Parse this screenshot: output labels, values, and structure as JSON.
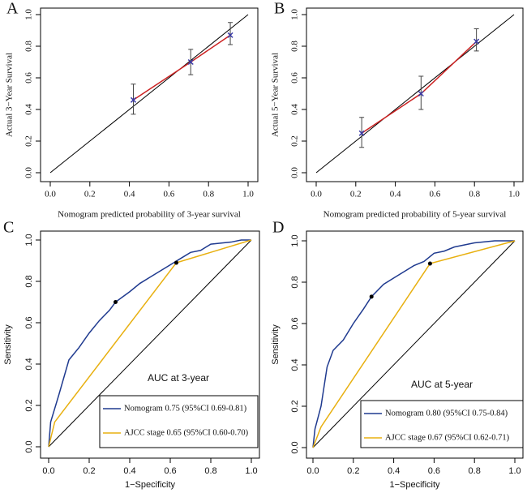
{
  "chart_data": [
    {
      "type": "calibration",
      "panel": "A",
      "xlabel": "Nomogram predicted probability of 3-year survival",
      "ylabel": "Actual 3−Year Survival",
      "xlim": [
        0,
        1
      ],
      "ylim": [
        0,
        1
      ],
      "xticks": [
        {
          "value": 0,
          "label": "0.0"
        },
        0.2,
        0.4,
        0.6,
        0.8,
        {
          "value": 1,
          "label": "1.0"
        }
      ],
      "yticks": [
        {
          "value": 0,
          "label": "0.0"
        },
        0.2,
        0.4,
        0.6,
        0.8,
        {
          "value": 1,
          "label": "1.0"
        }
      ],
      "x": [
        0.42,
        0.71,
        0.91
      ],
      "values": [
        0.46,
        0.7,
        0.87
      ],
      "lower": [
        0.37,
        0.62,
        0.81
      ],
      "upper": [
        0.56,
        0.78,
        0.95
      ],
      "line_color": "#cc2222",
      "marker_color": "#3a3aa8"
    },
    {
      "type": "calibration",
      "panel": "B",
      "xlabel": "Nomogram predicted probability of 5-year survival",
      "ylabel": "Actual 5−Year Survival",
      "xlim": [
        0,
        1
      ],
      "ylim": [
        0,
        1
      ],
      "xticks": [
        {
          "value": 0,
          "label": "0.0"
        },
        0.2,
        0.4,
        0.6,
        0.8,
        {
          "value": 1,
          "label": "1.0"
        }
      ],
      "yticks": [
        {
          "value": 0,
          "label": "0.0"
        },
        0.2,
        0.4,
        0.6,
        0.8,
        {
          "value": 1,
          "label": "1.0"
        }
      ],
      "x": [
        0.23,
        0.53,
        0.81
      ],
      "values": [
        0.25,
        0.5,
        0.83
      ],
      "lower": [
        0.16,
        0.4,
        0.77
      ],
      "upper": [
        0.35,
        0.61,
        0.91
      ],
      "line_color": "#cc2222",
      "marker_color": "#3a3aa8"
    },
    {
      "type": "roc",
      "panel": "C",
      "xlabel": "1−Specificity",
      "ylabel": "Sensitivity",
      "legend_title": "AUC at 3-year",
      "xlim": [
        0,
        1
      ],
      "ylim": [
        0,
        1
      ],
      "xticks": [
        {
          "value": 0,
          "label": "0.0"
        },
        0.2,
        0.4,
        0.6,
        0.8,
        {
          "value": 1,
          "label": "1.0"
        }
      ],
      "yticks": [
        {
          "value": 0,
          "label": "0.0"
        },
        0.2,
        0.4,
        0.6,
        0.8,
        {
          "value": 1,
          "label": "1.0"
        }
      ],
      "series": [
        {
          "name": "Nomogram 0.75 (95%CI 0.69-0.81)",
          "color": "#1f3a8f",
          "x": [
            0,
            0.01,
            0.05,
            0.1,
            0.15,
            0.2,
            0.25,
            0.3,
            0.33,
            0.4,
            0.45,
            0.5,
            0.55,
            0.6,
            0.65,
            0.7,
            0.75,
            0.8,
            0.9,
            0.95,
            1
          ],
          "values": [
            0,
            0.12,
            0.25,
            0.42,
            0.48,
            0.55,
            0.61,
            0.66,
            0.7,
            0.75,
            0.79,
            0.82,
            0.85,
            0.88,
            0.91,
            0.94,
            0.95,
            0.98,
            0.99,
            1,
            1
          ]
        },
        {
          "name": "AJCC stage 0.65 (95%CI 0.60-0.70)",
          "color": "#e8b010",
          "x": [
            0,
            0.03,
            0.63,
            1
          ],
          "values": [
            0,
            0.12,
            0.89,
            1
          ]
        }
      ],
      "cutoffs": {
        "x": [
          0.33,
          0.63
        ],
        "values": [
          0.7,
          0.89
        ]
      }
    },
    {
      "type": "roc",
      "panel": "D",
      "xlabel": "1−Specificity",
      "ylabel": "Sensitivity",
      "legend_title": "AUC at 5-year",
      "xlim": [
        0,
        1
      ],
      "ylim": [
        0,
        1
      ],
      "xticks": [
        {
          "value": 0,
          "label": "0.0"
        },
        0.2,
        0.4,
        0.6,
        0.8,
        {
          "value": 1,
          "label": "1.0"
        }
      ],
      "yticks": [
        {
          "value": 0,
          "label": "0.0"
        },
        0.2,
        0.4,
        0.6,
        0.8,
        {
          "value": 1,
          "label": "1.0"
        }
      ],
      "series": [
        {
          "name": "Nomogram 0.80 (95%CI 0.75-0.84)",
          "color": "#1f3a8f",
          "x": [
            0,
            0.01,
            0.04,
            0.07,
            0.1,
            0.15,
            0.2,
            0.25,
            0.29,
            0.35,
            0.4,
            0.5,
            0.55,
            0.6,
            0.65,
            0.7,
            0.8,
            0.9,
            1
          ],
          "values": [
            0,
            0.09,
            0.2,
            0.39,
            0.47,
            0.52,
            0.6,
            0.67,
            0.73,
            0.79,
            0.82,
            0.88,
            0.9,
            0.94,
            0.95,
            0.97,
            0.99,
            1,
            1
          ]
        },
        {
          "name": "AJCC stage 0.67 (95%CI 0.62-0.71)",
          "color": "#e8b010",
          "x": [
            0,
            0.04,
            0.58,
            1
          ],
          "values": [
            0,
            0.1,
            0.89,
            1
          ]
        }
      ],
      "cutoffs": {
        "x": [
          0.29,
          0.58
        ],
        "values": [
          0.73,
          0.89
        ]
      }
    }
  ]
}
